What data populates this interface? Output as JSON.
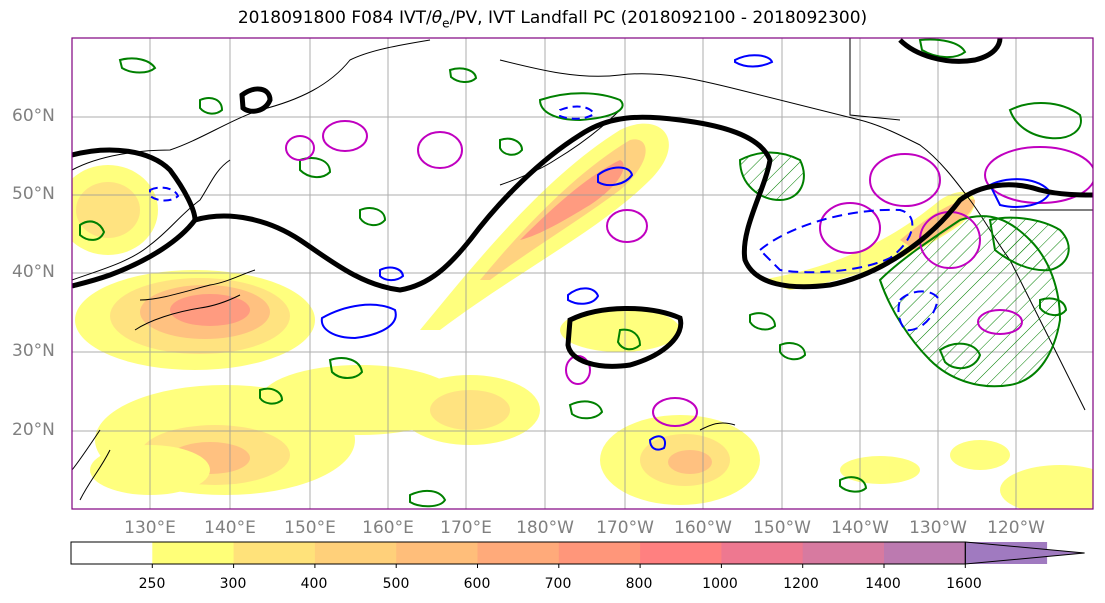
{
  "title": "2018091800 F084 IVT/θe/PV, IVT Landfall PC (2018092100 - 2018092300)",
  "title_parts": {
    "before": "2018091800 F084 IVT/",
    "theta": "θ",
    "theta_sub": "e",
    "after": "/PV, IVT Landfall PC (2018092100 - 2018092300)"
  },
  "lat_labels": [
    "60°N",
    "50°N",
    "40°N",
    "30°N",
    "20°N"
  ],
  "lon_labels": [
    "130°E",
    "140°E",
    "150°E",
    "160°E",
    "170°E",
    "180°W",
    "170°W",
    "160°W",
    "150°W",
    "140°W",
    "130°W",
    "120°W"
  ],
  "colorbar": {
    "ticks": [
      "250",
      "300",
      "400",
      "500",
      "600",
      "700",
      "800",
      "1000",
      "1200",
      "1400",
      "1600"
    ],
    "colors": [
      "#ffffff",
      "#ffff78",
      "#ffe27a",
      "#ffd07a",
      "#ffbe7a",
      "#ffaa7a",
      "#ff967a",
      "#ff8080",
      "#ee7890",
      "#d77aa0",
      "#bc7ab0",
      "#a07ac0"
    ]
  },
  "legend_colors": {
    "ivt_black": "#000000",
    "pv_green": "#008000",
    "theta_blue": "#0000ff",
    "pc_magenta": "#c000c0",
    "border": "#800080"
  }
}
